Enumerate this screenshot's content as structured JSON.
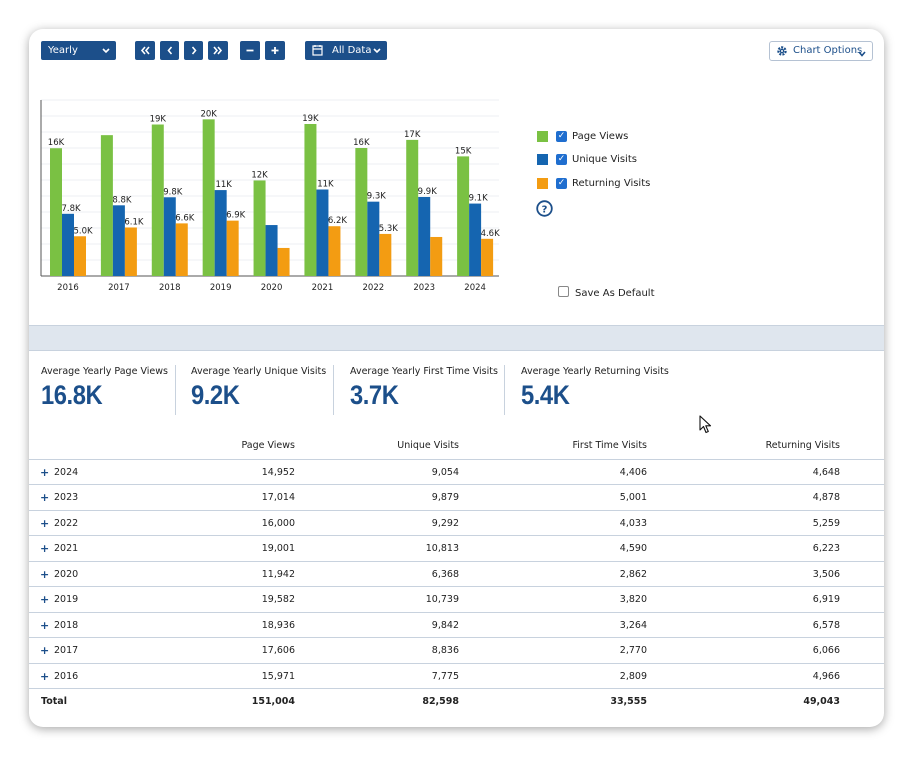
{
  "toolbar": {
    "period_select": "Yearly",
    "range_select": "All Data",
    "chart_options": "Chart Options",
    "colors": {
      "button": "#1c4f8a"
    }
  },
  "chart_data": {
    "type": "bar",
    "categories": [
      "2016",
      "2017",
      "2018",
      "2019",
      "2020",
      "2021",
      "2022",
      "2023",
      "2024"
    ],
    "series": [
      {
        "name": "Page Views",
        "color": "#7ac143",
        "values": [
          15971,
          17606,
          18936,
          19582,
          11942,
          19001,
          16000,
          17014,
          14952
        ],
        "labels": [
          "16K",
          "",
          "19K",
          "20K",
          "12K",
          "19K",
          "16K",
          "17K",
          "15K"
        ]
      },
      {
        "name": "Unique Visits",
        "color": "#1565b0",
        "values": [
          7775,
          8836,
          9842,
          10739,
          6368,
          10813,
          9292,
          9879,
          9054
        ],
        "labels": [
          "7.8K",
          "8.8K",
          "9.8K",
          "11K",
          "",
          "11K",
          "9.3K",
          "9.9K",
          "9.1K"
        ]
      },
      {
        "name": "Returning Visits",
        "color": "#f39c12",
        "values": [
          4966,
          6066,
          6578,
          6919,
          3506,
          6223,
          5259,
          4878,
          4648
        ],
        "labels": [
          "5.0K",
          "6.1K",
          "6.6K",
          "6.9K",
          "",
          "6.2K",
          "5.3K",
          "",
          "4.6K"
        ]
      }
    ],
    "ylim": [
      0,
      22000
    ],
    "legend": "right"
  },
  "legend": {
    "items": [
      {
        "label": "Page Views",
        "color": "#7ac143"
      },
      {
        "label": "Unique Visits",
        "color": "#1565b0"
      },
      {
        "label": "Returning Visits",
        "color": "#f39c12"
      }
    ],
    "save_default": "Save As Default"
  },
  "stats": [
    {
      "label": "Average Yearly Page Views",
      "value": "16.8K"
    },
    {
      "label": "Average Yearly Unique Visits",
      "value": "9.2K"
    },
    {
      "label": "Average Yearly First Time Visits",
      "value": "3.7K"
    },
    {
      "label": "Average Yearly Returning Visits",
      "value": "5.4K"
    }
  ],
  "table": {
    "headers": [
      "Page Views",
      "Unique Visits",
      "First Time Visits",
      "Returning Visits"
    ],
    "rows": [
      {
        "year": "2024",
        "pv": "14,952",
        "uv": "9,054",
        "ft": "4,406",
        "rv": "4,648"
      },
      {
        "year": "2023",
        "pv": "17,014",
        "uv": "9,879",
        "ft": "5,001",
        "rv": "4,878"
      },
      {
        "year": "2022",
        "pv": "16,000",
        "uv": "9,292",
        "ft": "4,033",
        "rv": "5,259"
      },
      {
        "year": "2021",
        "pv": "19,001",
        "uv": "10,813",
        "ft": "4,590",
        "rv": "6,223"
      },
      {
        "year": "2020",
        "pv": "11,942",
        "uv": "6,368",
        "ft": "2,862",
        "rv": "3,506"
      },
      {
        "year": "2019",
        "pv": "19,582",
        "uv": "10,739",
        "ft": "3,820",
        "rv": "6,919"
      },
      {
        "year": "2018",
        "pv": "18,936",
        "uv": "9,842",
        "ft": "3,264",
        "rv": "6,578"
      },
      {
        "year": "2017",
        "pv": "17,606",
        "uv": "8,836",
        "ft": "2,770",
        "rv": "6,066"
      },
      {
        "year": "2016",
        "pv": "15,971",
        "uv": "7,775",
        "ft": "2,809",
        "rv": "4,966"
      }
    ],
    "total": {
      "label": "Total",
      "pv": "151,004",
      "uv": "82,598",
      "ft": "33,555",
      "rv": "49,043"
    }
  }
}
